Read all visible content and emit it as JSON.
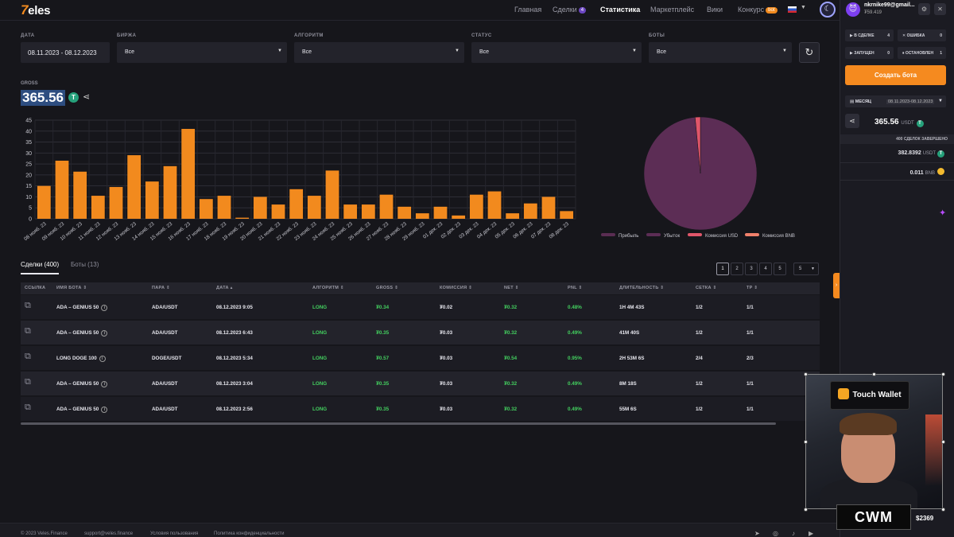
{
  "header": {
    "logo": {
      "mark": "7",
      "text": "eles"
    },
    "nav": [
      {
        "label": "Главная"
      },
      {
        "label": "Сделки",
        "badge": "4"
      },
      {
        "label": "Статистика",
        "active": true
      },
      {
        "label": "Маркетплейс"
      },
      {
        "label": "Вики"
      },
      {
        "label": "Конкурс",
        "badge": "bot"
      }
    ]
  },
  "filters": {
    "date": {
      "label": "ДАТА",
      "value": "08.11.2023 - 08.12.2023"
    },
    "exchange": {
      "label": "БИРЖА",
      "value": "Все"
    },
    "algorithm": {
      "label": "АЛГОРИТМ",
      "value": "Все"
    },
    "status": {
      "label": "СТАТУС",
      "value": "Все"
    },
    "bots": {
      "label": "БОТЫ",
      "value": "Все"
    }
  },
  "gross": {
    "label": "GROSS",
    "value": "365.56",
    "coin_symbol": "T"
  },
  "chart_data": [
    {
      "type": "bar",
      "categories": [
        "08 нояб. 23",
        "09 нояб. 23",
        "10 нояб. 23",
        "11 нояб. 23",
        "12 нояб. 23",
        "13 нояб. 23",
        "14 нояб. 23",
        "15 нояб. 23",
        "16 нояб. 23",
        "17 нояб. 23",
        "18 нояб. 23",
        "19 нояб. 23",
        "20 нояб. 23",
        "21 нояб. 23",
        "22 нояб. 23",
        "23 нояб. 23",
        "24 нояб. 23",
        "25 нояб. 23",
        "26 нояб. 23",
        "27 нояб. 23",
        "28 нояб. 23",
        "29 нояб. 23",
        "01 дек. 23",
        "02 дек. 23",
        "03 дек. 23",
        "04 дек. 23",
        "05 дек. 23",
        "06 дек. 23",
        "07 дек. 23",
        "08 дек. 23"
      ],
      "values": [
        15,
        26.5,
        21.5,
        10.5,
        14.5,
        29,
        17,
        24,
        41,
        9,
        10.5,
        0.5,
        10,
        6.5,
        13.5,
        10.5,
        22,
        6.5,
        6.5,
        11,
        5.5,
        2.5,
        5.5,
        1.5,
        11,
        12.5,
        2.5,
        7,
        10,
        3.5
      ],
      "yticks": [
        0,
        5,
        10,
        15,
        20,
        25,
        30,
        35,
        40,
        45
      ],
      "ylim": [
        0,
        45
      ],
      "color": "#f28a1e",
      "grid": true
    },
    {
      "type": "pie",
      "series": [
        {
          "name": "Прибыль",
          "value": 0,
          "color": "#5a2d52"
        },
        {
          "name": "Убыток",
          "value": 98.5,
          "color": "#5c2d55"
        },
        {
          "name": "Комиссия USD",
          "value": 1.5,
          "color": "#e0566a"
        },
        {
          "name": "Комиссия BNB",
          "value": 0,
          "color": "#f0806b"
        }
      ],
      "legend_position": "bottom"
    }
  ],
  "tabs": [
    {
      "label": "Сделки (400)",
      "active": true
    },
    {
      "label": "Боты (13)"
    }
  ],
  "pagination": {
    "pages": [
      "1",
      "2",
      "3",
      "4",
      "5"
    ],
    "current": "1",
    "page_size": "5"
  },
  "table": {
    "columns": [
      "ССЫЛКА",
      "ИМЯ БОТА",
      "ПАРА",
      "ДАТА",
      "АЛГОРИТМ",
      "GROSS",
      "КОМИССИЯ",
      "NET",
      "PNL",
      "ДЛИТЕЛЬНОСТЬ",
      "СЕТКА",
      "TP"
    ],
    "rows": [
      {
        "bot": "ADA – GENIUS 50",
        "pair": "ADA/USDT",
        "date": "08.12.2023 9:05",
        "algo": "LONG",
        "gross": "₮0.34",
        "fee": "₮0.02",
        "net": "₮0.32",
        "pnl": "0.48%",
        "duration": "1H 4M 43S",
        "grid": "1/2",
        "tp": "1/1"
      },
      {
        "bot": "ADA – GENIUS 50",
        "pair": "ADA/USDT",
        "date": "08.12.2023 6:43",
        "algo": "LONG",
        "gross": "₮0.35",
        "fee": "₮0.03",
        "net": "₮0.32",
        "pnl": "0.49%",
        "duration": "41M 40S",
        "grid": "1/2",
        "tp": "1/1"
      },
      {
        "bot": "LONG DOGE 100",
        "pair": "DOGE/USDT",
        "date": "08.12.2023 5:34",
        "algo": "LONG",
        "gross": "₮0.57",
        "fee": "₮0.03",
        "net": "₮0.54",
        "pnl": "0.95%",
        "duration": "2H 53M 6S",
        "grid": "2/4",
        "tp": "2/3"
      },
      {
        "bot": "ADA – GENIUS 50",
        "pair": "ADA/USDT",
        "date": "08.12.2023 3:04",
        "algo": "LONG",
        "gross": "₮0.35",
        "fee": "₮0.03",
        "net": "₮0.32",
        "pnl": "0.49%",
        "duration": "8M 18S",
        "grid": "1/2",
        "tp": "1/1"
      },
      {
        "bot": "ADA – GENIUS 50",
        "pair": "ADA/USDT",
        "date": "08.12.2023 2:56",
        "algo": "LONG",
        "gross": "₮0.35",
        "fee": "₮0.03",
        "net": "₮0.32",
        "pnl": "0.49%",
        "duration": "55M 6S",
        "grid": "1/2",
        "tp": "1/1"
      }
    ]
  },
  "footer": {
    "copyright": "© 2023 Veles.Finance",
    "email": "support@veles.finance",
    "terms": "Условия пользования",
    "privacy": "Политика конфиденциальности"
  },
  "sidebar": {
    "user": {
      "email": "nkrnike99@gmail...",
      "balance": "₮59.419"
    },
    "stats": [
      {
        "label": "В СДЕЛКЕ",
        "value": "4"
      },
      {
        "label": "ОШИБКА",
        "value": "0"
      },
      {
        "label": "ЗАПУЩЕН",
        "value": "0"
      },
      {
        "label": "ОСТАНОВЛЕН",
        "value": "1"
      }
    ],
    "create_bot": "Создать бота",
    "period": {
      "label": "МЕСЯЦ",
      "range": "08.11.2023-08.12.2023"
    },
    "total": {
      "value": "365.56",
      "unit": "USDT"
    },
    "deals_done": "400 СДЕЛОК ЗАВЕРШЕНО",
    "coins": [
      {
        "value": "382.8392",
        "unit": "USDT"
      },
      {
        "value": "0.011",
        "unit": "BNB"
      }
    ]
  },
  "overlay": {
    "sign": "Touch Wallet",
    "logo": "CWM",
    "price": "$2369"
  }
}
